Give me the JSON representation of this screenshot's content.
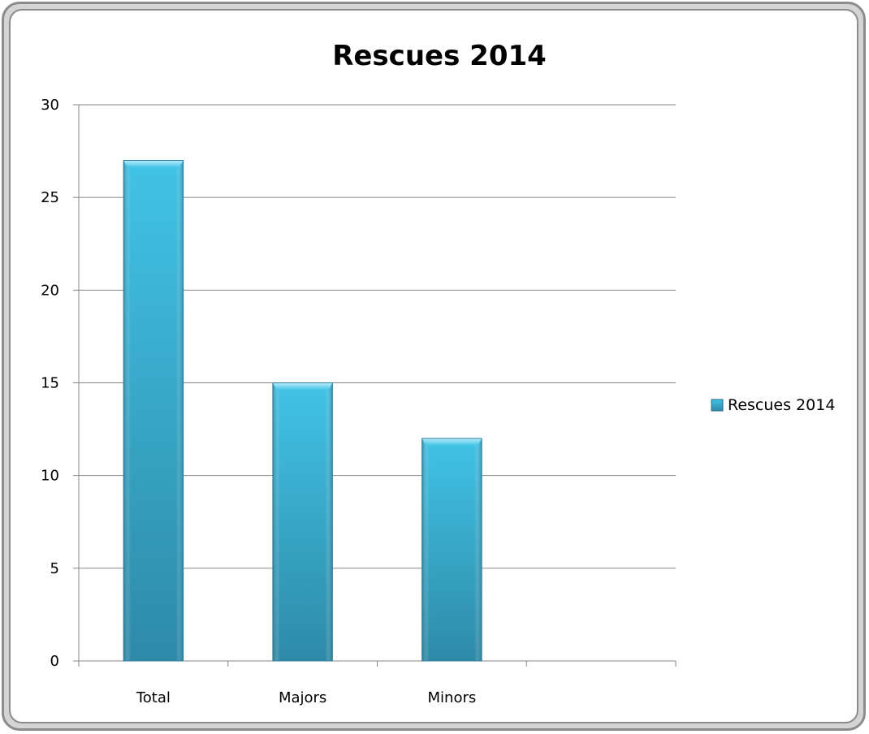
{
  "chart_data": {
    "type": "bar",
    "title": "Rescues 2014",
    "categories": [
      "Total",
      "Majors",
      "Minors",
      ""
    ],
    "series": [
      {
        "name": "Rescues 2014",
        "values": [
          27,
          15,
          12,
          null
        ]
      }
    ],
    "ylim": [
      0,
      30
    ],
    "yticks": [
      0,
      5,
      10,
      15,
      20,
      25,
      30
    ],
    "grid": true,
    "legend_position": "right",
    "colors": {
      "bar_top": "#41c3e6",
      "bar_bottom": "#2e8aa8",
      "gridline": "#868686"
    }
  }
}
